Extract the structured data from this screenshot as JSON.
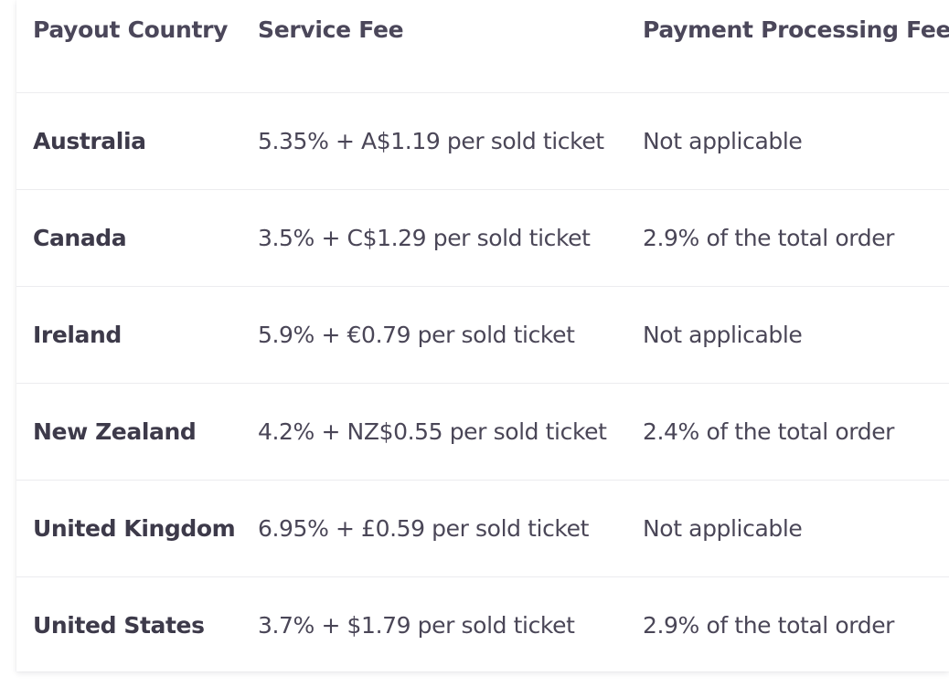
{
  "table": {
    "headers": [
      "Payout Country",
      "Service Fee",
      "Payment Processing Fee"
    ],
    "rows": [
      {
        "country": "Australia",
        "service_fee": "5.35% + A$1.19 per sold ticket",
        "processing_fee": "Not applicable"
      },
      {
        "country": "Canada",
        "service_fee": "3.5% + C$1.29 per sold ticket",
        "processing_fee": "2.9% of the total order"
      },
      {
        "country": "Ireland",
        "service_fee": "5.9% + €0.79 per sold ticket",
        "processing_fee": "Not applicable"
      },
      {
        "country": "New Zealand",
        "service_fee": "4.2% + NZ$0.55 per sold ticket",
        "processing_fee": "2.4% of the total order"
      },
      {
        "country": "United Kingdom",
        "service_fee": "6.95% + £0.59 per sold ticket",
        "processing_fee": "Not applicable"
      },
      {
        "country": "United States",
        "service_fee": "3.7% + $1.79 per sold ticket",
        "processing_fee": "2.9% of the total order"
      }
    ]
  }
}
